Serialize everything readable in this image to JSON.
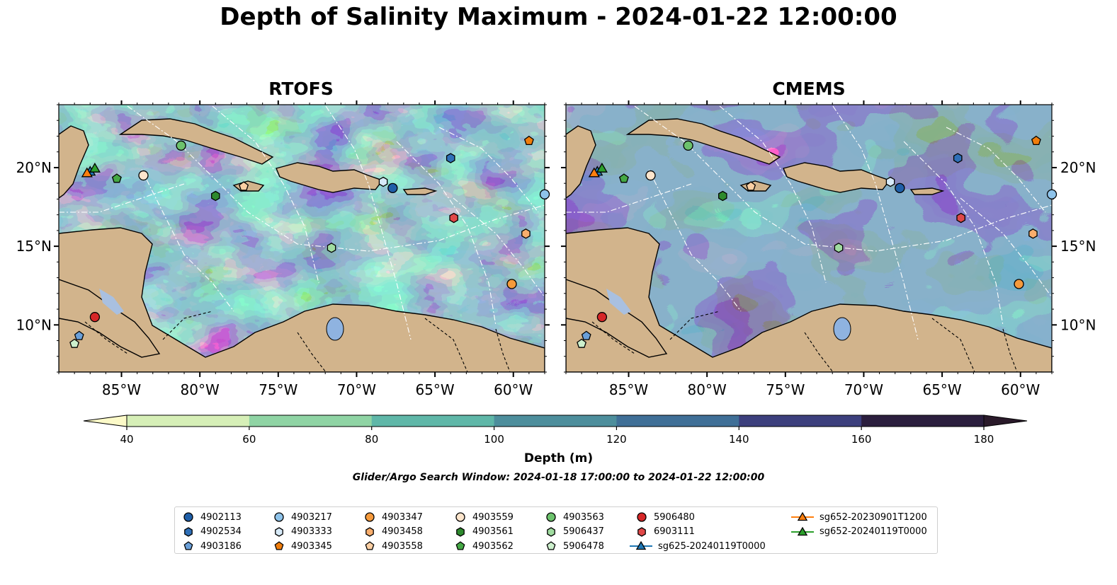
{
  "figure": {
    "title": "Depth of Salinity Maximum - 2024-01-22 12:00:00",
    "colorbar_label": "Depth (m)",
    "search_window": "Glider/Argo Search Window: 2024-01-18 17:00:00 to 2024-01-22 12:00:00"
  },
  "chart_data": {
    "type": "heatmap",
    "panels": [
      {
        "title": "RTOFS",
        "lat_labels_side": "left"
      },
      {
        "title": "CMEMS",
        "lat_labels_side": "right"
      }
    ],
    "x_range": [
      -89,
      -58
    ],
    "y_range": [
      7,
      24
    ],
    "x_ticks": [
      "85°W",
      "80°W",
      "75°W",
      "70°W",
      "65°W",
      "60°W"
    ],
    "x_tick_values": [
      -85,
      -80,
      -75,
      -70,
      -65,
      -60
    ],
    "y_ticks": [
      "20°N",
      "15°N",
      "10°N"
    ],
    "y_tick_values": [
      20,
      15,
      10
    ],
    "colorbar": {
      "ticks": [
        40,
        60,
        80,
        100,
        120,
        140,
        160,
        180
      ],
      "colors": [
        "#d6efb7",
        "#8fd4a4",
        "#5fb7a8",
        "#4d8e9c",
        "#3f6f97",
        "#3c3f7d",
        "#2b1e3e"
      ],
      "under_color": "#fcfac8",
      "over_color": "#2a1a2a",
      "extend": "both"
    },
    "land_color": "#d2b48c",
    "observations": [
      {
        "id": "4902113",
        "marker": "circle",
        "color": "#1f5fa8",
        "lon": -67.7,
        "lat": 18.7
      },
      {
        "id": "4902534",
        "marker": "hexagon",
        "color": "#2f70b8",
        "lon": -64.0,
        "lat": 20.6
      },
      {
        "id": "4903186",
        "marker": "pentagon",
        "color": "#6a9fd8",
        "lon": -87.7,
        "lat": 9.3
      },
      {
        "id": "4903217",
        "marker": "circle",
        "color": "#8ec3ea",
        "lon": -58.0,
        "lat": 18.3
      },
      {
        "id": "4903333",
        "marker": "hexagon",
        "color": "#d7eaf8",
        "lon": -68.3,
        "lat": 19.1
      },
      {
        "id": "4903345",
        "marker": "pentagon",
        "color": "#f07d0c",
        "lon": -59.0,
        "lat": 21.7
      },
      {
        "id": "4903347",
        "marker": "circle",
        "color": "#f59a3c",
        "lon": -60.1,
        "lat": 12.6
      },
      {
        "id": "4903458",
        "marker": "hexagon",
        "color": "#f8ae6d",
        "lon": -59.2,
        "lat": 15.8
      },
      {
        "id": "4903558",
        "marker": "pentagon",
        "color": "#fbcfa3",
        "lon": -77.2,
        "lat": 18.8
      },
      {
        "id": "4903559",
        "marker": "circle",
        "color": "#fde5cc",
        "lon": -83.6,
        "lat": 19.5
      },
      {
        "id": "4903561",
        "marker": "hexagon",
        "color": "#2e8a2e",
        "lon": -79.0,
        "lat": 18.2
      },
      {
        "id": "4903562",
        "marker": "pentagon",
        "color": "#45a845",
        "lon": -85.3,
        "lat": 19.3
      },
      {
        "id": "4903563",
        "marker": "circle",
        "color": "#6cc26c",
        "lon": -81.2,
        "lat": 21.4
      },
      {
        "id": "5906437",
        "marker": "hexagon",
        "color": "#a0dca0",
        "lon": -71.6,
        "lat": 14.9
      },
      {
        "id": "5906478",
        "marker": "pentagon",
        "color": "#cdf0cd",
        "lon": -88.0,
        "lat": 8.8
      },
      {
        "id": "5906480",
        "marker": "circle",
        "color": "#d62728",
        "lon": -86.7,
        "lat": 10.5
      },
      {
        "id": "6903111",
        "marker": "hexagon",
        "color": "#e04848",
        "lon": -63.8,
        "lat": 16.8
      },
      {
        "id": "sg625-20240119T0000",
        "marker": "triangle-line",
        "color": "#1f77b4",
        "lon": -87.0,
        "lat": 19.7
      },
      {
        "id": "sg652-20230901T1200",
        "marker": "triangle-line",
        "color": "#ff7f0e",
        "lon": -87.2,
        "lat": 19.6
      },
      {
        "id": "sg652-20240119T0000",
        "marker": "triangle-line",
        "color": "#2ca02c",
        "lon": -86.7,
        "lat": 19.9
      }
    ]
  }
}
